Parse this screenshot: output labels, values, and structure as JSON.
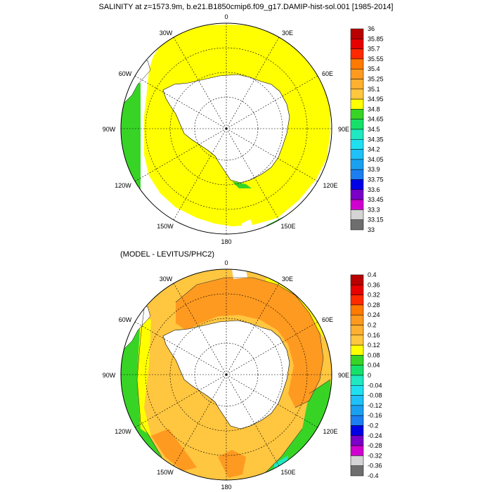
{
  "figure_title": "SALINITY at z=1573.9m, b.e21.B1850cmip6.f09_g17.DAMIP-hist-sol.001 [1985-2014]",
  "bottom_title": "(MODEL - LEVITUS/PHC2)",
  "longitude_labels": {
    "top": "0",
    "bottom": "180",
    "w30": "30W",
    "w60": "60W",
    "w90": "90W",
    "w120": "120W",
    "w150": "150W",
    "e30": "30E",
    "e60": "60E",
    "e90": "90E",
    "e120": "120E",
    "e150": "150E"
  },
  "top_colorbar": {
    "labels": [
      "36",
      "35.85",
      "35.7",
      "35.55",
      "35.4",
      "35.25",
      "35.1",
      "34.95",
      "34.8",
      "34.65",
      "34.5",
      "34.35",
      "34.2",
      "34.05",
      "33.9",
      "33.75",
      "33.6",
      "33.45",
      "33.3",
      "33.15",
      "33"
    ],
    "colors": [
      "#b80000",
      "#e60000",
      "#ff2a00",
      "#ff7a00",
      "#ff9a20",
      "#ffb030",
      "#ffc640",
      "#ffff00",
      "#37d426",
      "#16e06a",
      "#20e8c0",
      "#20e0f0",
      "#20c0f8",
      "#1aa0f0",
      "#1c7ef0",
      "#0000e6",
      "#7a00c8",
      "#d000d0",
      "#d4d4d4",
      "#6e6e6e"
    ]
  },
  "bottom_colorbar": {
    "labels": [
      "0.4",
      "0.36",
      "0.32",
      "0.28",
      "0.24",
      "0.2",
      "0.16",
      "0.12",
      "0.08",
      "0.04",
      "0",
      "-0.04",
      "-0.08",
      "-0.12",
      "-0.16",
      "-0.2",
      "-0.24",
      "-0.28",
      "-0.32",
      "-0.36",
      "-0.4"
    ],
    "colors": [
      "#b80000",
      "#e60000",
      "#ff2a00",
      "#ff7a00",
      "#ff9a20",
      "#ffb030",
      "#ffc640",
      "#ffff00",
      "#37d426",
      "#16e06a",
      "#20e8c0",
      "#20e0f0",
      "#20c0f8",
      "#1aa0f0",
      "#1c7ef0",
      "#0000e6",
      "#7a00c8",
      "#d000d0",
      "#d4d4d4",
      "#6e6e6e"
    ]
  },
  "colors": {
    "salinity_main": "#ffff00",
    "salinity_edge": "#37d426",
    "anomaly_main": "#ffc640",
    "anomaly_high": "#ff9a20",
    "anomaly_low": "#37d426",
    "land": "#ffffff"
  }
}
